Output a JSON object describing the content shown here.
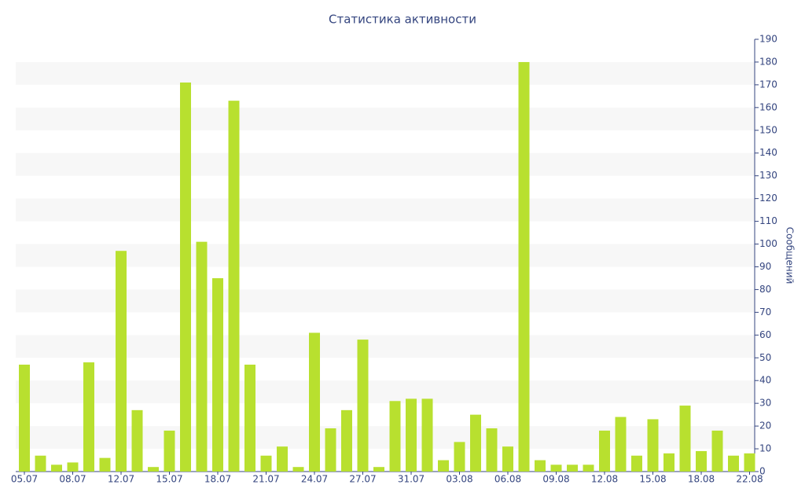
{
  "chart_data": {
    "type": "bar",
    "title": "Статистика активности",
    "y_label": "Сообщений",
    "categories": [
      "05.07",
      null,
      null,
      "08.07",
      null,
      null,
      "12.07",
      null,
      null,
      "15.07",
      null,
      null,
      "18.07",
      null,
      null,
      "21.07",
      null,
      null,
      "24.07",
      null,
      null,
      "27.07",
      null,
      null,
      "31.07",
      null,
      null,
      "03.08",
      null,
      null,
      "06.08",
      null,
      null,
      "09.08",
      null,
      null,
      "12.08",
      null,
      null,
      "15.08",
      null,
      null,
      "18.08",
      null,
      null,
      "22.08"
    ],
    "values": [
      47,
      7,
      3,
      4,
      48,
      6,
      97,
      27,
      2,
      18,
      171,
      101,
      85,
      163,
      47,
      7,
      11,
      2,
      61,
      19,
      27,
      58,
      2,
      31,
      32,
      32,
      5,
      13,
      25,
      19,
      11,
      180,
      5,
      3,
      3,
      3,
      18,
      24,
      7,
      23,
      8,
      29,
      9,
      18,
      7,
      8
    ],
    "color": "#b8e02f",
    "ylim": [
      0,
      190
    ],
    "yticks": [
      0,
      10,
      20,
      30,
      40,
      50,
      60,
      70,
      80,
      90,
      100,
      110,
      120,
      130,
      140,
      150,
      160,
      170,
      180,
      190
    ],
    "grid": "bands",
    "y_axis_side": "right"
  }
}
